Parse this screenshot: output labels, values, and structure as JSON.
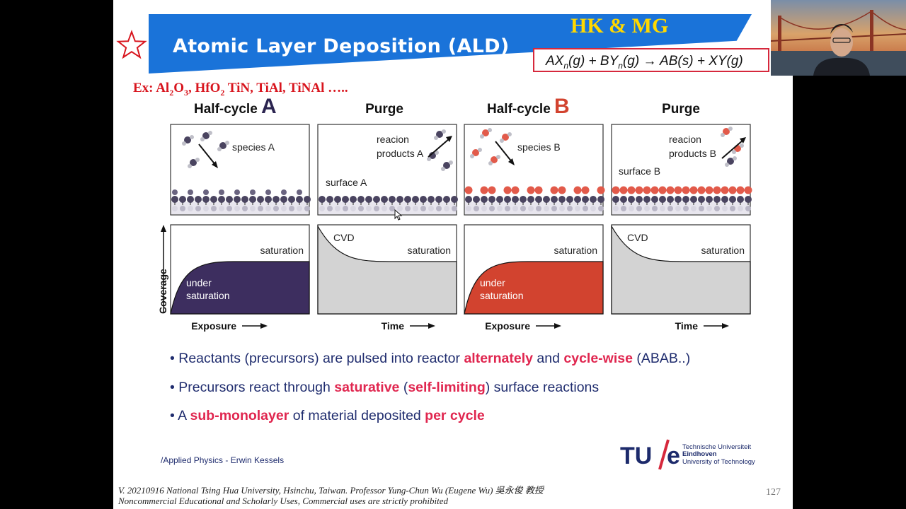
{
  "slide": {
    "title": "Atomic Layer Deposition (ALD)",
    "tag": "HK & MG",
    "equation": {
      "a": "AX",
      "a_sub": "n",
      "b": "(g) + BY",
      "b_sub": "n",
      "c": "(g) → AB(s) + XY(g)"
    },
    "example": {
      "prefix": "Ex: Al",
      "al_sub1": "2",
      "o": "O",
      "al_sub2": "3",
      "hf": ", HfO",
      "hf_sub": "2",
      "rest": " TiN, TiAl, TiNAl ….."
    },
    "figure": {
      "panels": [
        {
          "title": "Half-cycle ",
          "letter": "A",
          "labels": [
            "species A"
          ]
        },
        {
          "title": "Purge",
          "letter": "",
          "labels": [
            "reacion",
            "products A",
            "surface A"
          ]
        },
        {
          "title": "Half-cycle ",
          "letter": "B",
          "labels": [
            "species B"
          ]
        },
        {
          "title": "Purge",
          "letter": "",
          "labels": [
            "reacion",
            "products B",
            "surface B"
          ]
        }
      ],
      "graphs": [
        {
          "top": "saturation",
          "inside": [
            "under",
            "saturation"
          ],
          "xlabel": "Exposure",
          "fill": "#3d2e5f"
        },
        {
          "top": "saturation",
          "curve_label": "CVD",
          "xlabel": "Time",
          "fill": "#d3d3d3"
        },
        {
          "top": "saturation",
          "inside": [
            "under",
            "saturation"
          ],
          "xlabel": "Exposure",
          "fill": "#d2432f"
        },
        {
          "top": "saturation",
          "curve_label": "CVD",
          "xlabel": "Time",
          "fill": "#d3d3d3"
        }
      ],
      "ylabel": "Coverage"
    },
    "bullets": [
      {
        "parts": [
          {
            "t": "• Reactants (precursors) are pulsed into reactor "
          },
          {
            "t": "alternately",
            "r": true
          },
          {
            "t": " and "
          },
          {
            "t": "cycle-wise",
            "r": true
          },
          {
            "t": " (ABAB..)"
          }
        ]
      },
      {
        "parts": [
          {
            "t": "• Precursors react through "
          },
          {
            "t": "saturative",
            "r": true
          },
          {
            "t": " ("
          },
          {
            "t": "self-limiting",
            "r": true
          },
          {
            "t": ") surface reactions"
          }
        ]
      },
      {
        "parts": [
          {
            "t": "• A "
          },
          {
            "t": "sub-monolayer",
            "r": true
          },
          {
            "t": " of material deposited "
          },
          {
            "t": "per cycle",
            "r": true
          }
        ]
      }
    ],
    "credit": "/Applied Physics - Erwin Kessels",
    "university_logo": {
      "mark": "TU/e",
      "lines": [
        "Technische Universiteit",
        "Eindhoven",
        "University of Technology"
      ]
    },
    "footer": [
      "V. 20210916 National Tsing Hua University, Hsinchu, Taiwan. Professor Yung-Chun Wu (Eugene Wu) 吳永俊 教授",
      "Noncommercial Educational and Scholarly Uses, Commercial uses are strictly prohibited"
    ],
    "page_number": "127"
  },
  "colors": {
    "banner": "#1a73d9",
    "tag": "#ffd800",
    "accent_red": "#e0264f",
    "navy": "#1f2c6e",
    "species_a": "#3d2e5f",
    "species_b": "#d2432f"
  },
  "icons": [
    "star-icon",
    "webcam-video",
    "cursor-icon"
  ]
}
